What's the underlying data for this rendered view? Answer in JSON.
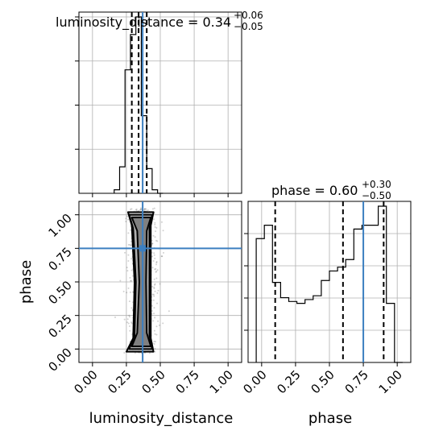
{
  "chart_data": {
    "type": "corner",
    "parameters": [
      "luminosity_distance",
      "phase"
    ],
    "xlabels": [
      "luminosity_distance",
      "phase"
    ],
    "ylabel_lower_left": "phase",
    "injection": {
      "luminosity_distance": 0.37,
      "phase": 0.75
    },
    "injection_color": "#3c7fc0",
    "titles": [
      {
        "name": "luminosity_distance",
        "median": "0.34",
        "plus": "+0.06",
        "minus": "−0.05",
        "text": "luminosity_distance = 0.34"
      },
      {
        "name": "phase",
        "median": "0.60",
        "plus": "+0.30",
        "minus": "−0.50",
        "text": "phase = 0.60"
      }
    ],
    "quantiles": {
      "luminosity_distance": [
        0.29,
        0.34,
        0.4
      ],
      "phase": [
        0.1,
        0.6,
        0.9
      ]
    },
    "ticks": {
      "luminosity_distance": {
        "values": [
          0,
          0.25,
          0.5,
          0.75,
          1.0
        ],
        "labels": [
          "0.00",
          "0.25",
          "0.50",
          "0.75",
          "1.00"
        ]
      },
      "phase": {
        "values": [
          0,
          0.25,
          0.5,
          0.75,
          1.0
        ],
        "labels": [
          "0.00",
          "0.25",
          "0.50",
          "0.75",
          "1.00"
        ]
      }
    },
    "ranges": {
      "luminosity_distance": [
        -0.1,
        1.1
      ],
      "phase": [
        -0.1,
        1.1
      ]
    },
    "hist_luminosity_distance": {
      "edges": [
        0.16,
        0.2,
        0.24,
        0.28,
        0.32,
        0.36,
        0.4,
        0.44,
        0.48,
        0.52
      ],
      "counts": [
        2,
        15,
        70,
        90,
        100,
        44,
        14,
        2,
        0
      ]
    },
    "hist_phase": {
      "edges": [
        -0.04,
        0.02,
        0.08,
        0.14,
        0.2,
        0.26,
        0.32,
        0.38,
        0.44,
        0.5,
        0.56,
        0.62,
        0.68,
        0.74,
        0.8,
        0.86,
        0.92,
        0.98,
        1.04
      ],
      "counts": [
        65,
        72,
        42,
        34,
        32,
        31,
        33,
        35,
        43,
        48,
        50,
        54,
        70,
        72,
        72,
        82,
        31,
        0
      ]
    },
    "contour_levels": [
      {
        "left": [
          [
            0.262,
            1.02
          ],
          [
            0.29,
            0.92
          ],
          [
            0.31,
            0.5
          ],
          [
            0.3,
            0.08
          ],
          [
            0.25,
            -0.02
          ]
        ],
        "right": [
          [
            0.45,
            1.02
          ],
          [
            0.43,
            0.92
          ],
          [
            0.43,
            0.5
          ],
          [
            0.43,
            0.08
          ],
          [
            0.45,
            -0.02
          ]
        ]
      },
      {
        "left": [
          [
            0.27,
            1.0
          ],
          [
            0.3,
            0.9
          ],
          [
            0.32,
            0.5
          ],
          [
            0.31,
            0.1
          ],
          [
            0.27,
            0.0
          ]
        ],
        "right": [
          [
            0.44,
            1.0
          ],
          [
            0.42,
            0.9
          ],
          [
            0.42,
            0.5
          ],
          [
            0.42,
            0.1
          ],
          [
            0.44,
            0.0
          ]
        ]
      },
      {
        "left": [
          [
            0.29,
            0.98
          ],
          [
            0.33,
            0.88
          ],
          [
            0.345,
            0.5
          ],
          [
            0.33,
            0.12
          ],
          [
            0.29,
            0.02
          ]
        ],
        "right": [
          [
            0.43,
            0.98
          ],
          [
            0.4,
            0.88
          ],
          [
            0.395,
            0.5
          ],
          [
            0.4,
            0.12
          ],
          [
            0.43,
            0.02
          ]
        ]
      }
    ],
    "scatter_seed": 7,
    "scatter_count": 900
  }
}
